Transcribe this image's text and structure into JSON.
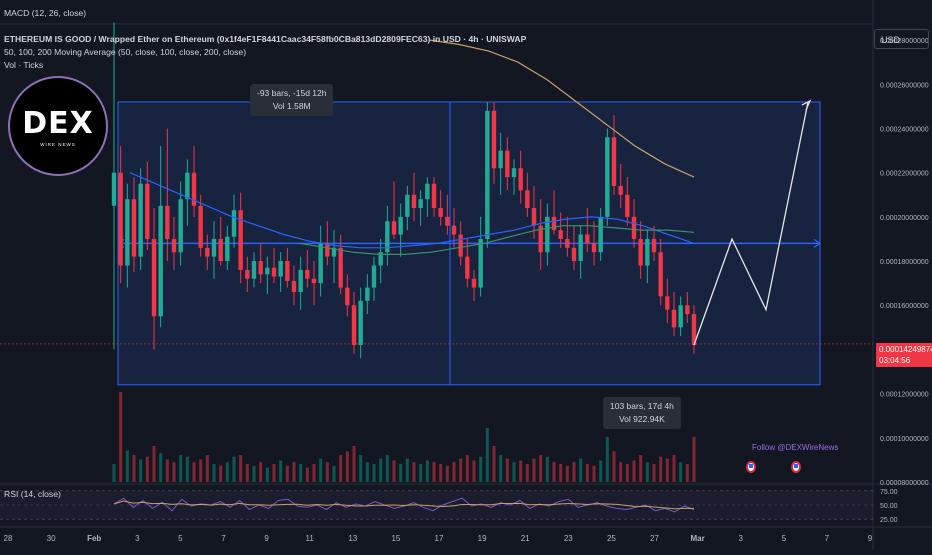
{
  "header": {
    "macd_label": "MACD (12, 26, close)",
    "title": "ETHEREUM IS GOOD / Wrapped Ether on Ethereum (0x1f4eF1F8441Caac34F58fb0CBa813dD2809FEC63) in USD · 4h · UNISWAP",
    "ma_label": "50, 100, 200 Moving Average (50, close, 100, close, 200, close)",
    "vol_label": "Vol · Ticks"
  },
  "currency": "USD",
  "logo": {
    "text": "DEX",
    "subtext": "WIRE NEWS"
  },
  "follow_text": "Follow @DEXWireNews",
  "tooltip_top": {
    "line1": "-93 bars, -15d 12h",
    "line2": "Vol 1.58M"
  },
  "tooltip_bottom": {
    "line1": "103 bars, 17d 4h",
    "line2": "Vol 922.94K"
  },
  "price_tag": {
    "price": "0.00014249874",
    "countdown": "03:04:56"
  },
  "rsi_label": "RSI (14, close)",
  "price_axis": [
    "0.00028000000",
    "0.00026000000",
    "0.00024000000",
    "0.00022000000",
    "0.00020000000",
    "0.00018000000",
    "0.00016000000",
    "0.00014000000",
    "0.00012000000",
    "0.00010000000",
    "0.00008000000"
  ],
  "rsi_axis": [
    "75.00",
    "50.00",
    "25.00"
  ],
  "time_axis": [
    "28",
    "30",
    "Feb",
    "3",
    "5",
    "7",
    "9",
    "11",
    "13",
    "15",
    "17",
    "19",
    "21",
    "23",
    "25",
    "27",
    "Mar",
    "3",
    "5",
    "7",
    "9"
  ],
  "colors": {
    "up": "#089981",
    "up_candle": "#22ab94",
    "down": "#f23645",
    "range_fill": "#1e2e5a",
    "range_line": "#2962ff",
    "ma50": "#2962ff",
    "ma100": "#3f8f6b",
    "ma200": "#c4a06a",
    "rsi": "#7e57c2",
    "rsi_ma": "#c4a06a"
  },
  "chart_data": {
    "type": "candlestick",
    "timeframe": "4h",
    "ylim": [
      8e-05,
      0.00029
    ],
    "price_range_box": {
      "high": 0.000252,
      "low": 0.000124,
      "mid": 0.000188
    },
    "last_price": 0.00014249874,
    "candles": [
      [
        0.000205,
        0.000288,
        0.00014,
        0.00022
      ],
      [
        0.00022,
        0.000232,
        0.00017,
        0.000178
      ],
      [
        0.000178,
        0.000215,
        0.000168,
        0.000208
      ],
      [
        0.000208,
        0.000218,
        0.000175,
        0.000182
      ],
      [
        0.000182,
        0.000222,
        0.000176,
        0.000215
      ],
      [
        0.000215,
        0.000225,
        0.000185,
        0.00019
      ],
      [
        0.00019,
        0.000204,
        0.00014,
        0.000155
      ],
      [
        0.000155,
        0.000232,
        0.00015,
        0.000205
      ],
      [
        0.000205,
        0.00024,
        0.00018,
        0.00019
      ],
      [
        0.00019,
        0.0002,
        0.000176,
        0.000184
      ],
      [
        0.000184,
        0.000216,
        0.000178,
        0.000208
      ],
      [
        0.000208,
        0.000226,
        0.000196,
        0.00022
      ],
      [
        0.00022,
        0.000232,
        0.0002,
        0.000205
      ],
      [
        0.000205,
        0.00021,
        0.000182,
        0.000186
      ],
      [
        0.000186,
        0.000192,
        0.000176,
        0.000182
      ],
      [
        0.000182,
        0.000198,
        0.000172,
        0.00019
      ],
      [
        0.00019,
        0.0002,
        0.000178,
        0.00018
      ],
      [
        0.00018,
        0.000196,
        0.000176,
        0.000191
      ],
      [
        0.000191,
        0.00021,
        0.000186,
        0.000203
      ],
      [
        0.000203,
        0.000211,
        0.00017,
        0.000176
      ],
      [
        0.000176,
        0.000182,
        0.000166,
        0.000172
      ],
      [
        0.000172,
        0.000184,
        0.000168,
        0.00018
      ],
      [
        0.00018,
        0.000188,
        0.00017,
        0.000174
      ],
      [
        0.000174,
        0.000182,
        0.000165,
        0.000177
      ],
      [
        0.000177,
        0.000186,
        0.00017,
        0.000173
      ],
      [
        0.000173,
        0.000184,
        0.000166,
        0.00018
      ],
      [
        0.00018,
        0.000186,
        0.000168,
        0.000171
      ],
      [
        0.000171,
        0.000178,
        0.00016,
        0.000166
      ],
      [
        0.000166,
        0.000182,
        0.000158,
        0.000176
      ],
      [
        0.000176,
        0.000185,
        0.000168,
        0.000172
      ],
      [
        0.000172,
        0.00018,
        0.00016,
        0.00017
      ],
      [
        0.00017,
        0.000196,
        0.000164,
        0.000188
      ],
      [
        0.000188,
        0.000198,
        0.000178,
        0.000182
      ],
      [
        0.000182,
        0.000194,
        0.00017,
        0.000186
      ],
      [
        0.000186,
        0.000192,
        0.000165,
        0.000168
      ],
      [
        0.000168,
        0.000174,
        0.000155,
        0.00016
      ],
      [
        0.00016,
        0.000166,
        0.000138,
        0.000142
      ],
      [
        0.000142,
        0.000168,
        0.000136,
        0.000162
      ],
      [
        0.000162,
        0.000174,
        0.000156,
        0.000168
      ],
      [
        0.000168,
        0.000182,
        0.000162,
        0.000178
      ],
      [
        0.000178,
        0.00019,
        0.00017,
        0.000184
      ],
      [
        0.000184,
        0.000205,
        0.000178,
        0.000198
      ],
      [
        0.000198,
        0.000216,
        0.00019,
        0.000192
      ],
      [
        0.000192,
        0.000206,
        0.000182,
        0.0002
      ],
      [
        0.0002,
        0.000214,
        0.000194,
        0.00021
      ],
      [
        0.00021,
        0.00022,
        0.000198,
        0.000204
      ],
      [
        0.000204,
        0.000212,
        0.000196,
        0.000208
      ],
      [
        0.000208,
        0.000218,
        0.0002,
        0.000215
      ],
      [
        0.000215,
        0.000218,
        0.0002,
        0.000204
      ],
      [
        0.000204,
        0.000212,
        0.000196,
        0.0002
      ],
      [
        0.0002,
        0.00021,
        0.000192,
        0.000196
      ],
      [
        0.000196,
        0.000204,
        0.000186,
        0.000192
      ],
      [
        0.000192,
        0.000198,
        0.000178,
        0.000182
      ],
      [
        0.000182,
        0.00019,
        0.000168,
        0.000172
      ],
      [
        0.000172,
        0.000176,
        0.000162,
        0.000168
      ],
      [
        0.000168,
        0.0002,
        0.000164,
        0.00019
      ],
      [
        0.00019,
        0.000252,
        0.000186,
        0.000248
      ],
      [
        0.000248,
        0.000252,
        0.000215,
        0.000222
      ],
      [
        0.000222,
        0.000238,
        0.00021,
        0.00023
      ],
      [
        0.00023,
        0.000236,
        0.000212,
        0.000218
      ],
      [
        0.000218,
        0.000226,
        0.00021,
        0.000222
      ],
      [
        0.000222,
        0.00023,
        0.000206,
        0.000212
      ],
      [
        0.000212,
        0.00022,
        0.0002,
        0.000204
      ],
      [
        0.000204,
        0.000214,
        0.00019,
        0.000196
      ],
      [
        0.000196,
        0.000208,
        0.000176,
        0.000184
      ],
      [
        0.000184,
        0.000206,
        0.000178,
        0.0002
      ],
      [
        0.0002,
        0.000212,
        0.000192,
        0.000194
      ],
      [
        0.000194,
        0.000202,
        0.000186,
        0.00019
      ],
      [
        0.00019,
        0.0002,
        0.000182,
        0.000186
      ],
      [
        0.000186,
        0.000196,
        0.000176,
        0.00018
      ],
      [
        0.00018,
        0.000196,
        0.000172,
        0.000192
      ],
      [
        0.000192,
        0.000204,
        0.000184,
        0.000188
      ],
      [
        0.000188,
        0.000198,
        0.000178,
        0.000184
      ],
      [
        0.000184,
        0.000204,
        0.00018,
        0.0002
      ],
      [
        0.0002,
        0.00024,
        0.000196,
        0.000236
      ],
      [
        0.000236,
        0.000246,
        0.00021,
        0.000214
      ],
      [
        0.000214,
        0.000224,
        0.000204,
        0.00021
      ],
      [
        0.00021,
        0.000218,
        0.000196,
        0.0002
      ],
      [
        0.0002,
        0.000208,
        0.000186,
        0.00019
      ],
      [
        0.00019,
        0.000198,
        0.000172,
        0.000178
      ],
      [
        0.000178,
        0.000194,
        0.00017,
        0.00019
      ],
      [
        0.00019,
        0.000196,
        0.00018,
        0.000184
      ],
      [
        0.000184,
        0.00019,
        0.00016,
        0.000164
      ],
      [
        0.000164,
        0.000172,
        0.000152,
        0.000158
      ],
      [
        0.000158,
        0.000166,
        0.000146,
        0.00015
      ],
      [
        0.00015,
        0.000164,
        0.000146,
        0.00016
      ],
      [
        0.00016,
        0.000166,
        0.000152,
        0.000156
      ],
      [
        0.000156,
        0.00016,
        0.000138,
        0.000142
      ]
    ],
    "volumes": [
      0.2,
      1.0,
      0.35,
      0.3,
      0.25,
      0.28,
      0.4,
      0.32,
      0.25,
      0.22,
      0.3,
      0.28,
      0.22,
      0.25,
      0.3,
      0.2,
      0.18,
      0.22,
      0.28,
      0.3,
      0.2,
      0.18,
      0.22,
      0.16,
      0.2,
      0.24,
      0.18,
      0.22,
      0.2,
      0.16,
      0.2,
      0.26,
      0.22,
      0.18,
      0.3,
      0.34,
      0.4,
      0.3,
      0.22,
      0.2,
      0.26,
      0.3,
      0.24,
      0.2,
      0.26,
      0.22,
      0.2,
      0.24,
      0.22,
      0.2,
      0.18,
      0.22,
      0.26,
      0.3,
      0.24,
      0.28,
      0.6,
      0.4,
      0.3,
      0.26,
      0.22,
      0.24,
      0.2,
      0.26,
      0.3,
      0.28,
      0.22,
      0.2,
      0.18,
      0.22,
      0.26,
      0.2,
      0.18,
      0.24,
      0.5,
      0.34,
      0.22,
      0.2,
      0.24,
      0.3,
      0.22,
      0.2,
      0.28,
      0.26,
      0.3,
      0.22,
      0.2,
      0.5
    ],
    "ma50": [
      0.00022,
      0.000215,
      0.00021,
      0.000205,
      0.0002,
      0.000196,
      0.000192,
      0.000189,
      0.000187,
      0.000186,
      0.000186,
      0.000187,
      0.000188,
      0.00019,
      0.000192,
      0.000194,
      0.000197,
      0.000199,
      0.0002,
      0.000199,
      0.000196,
      0.000192,
      0.000188
    ],
    "ma100": [
      0.000188,
      0.000186,
      0.000184,
      0.000183,
      0.000183,
      0.000184,
      0.000186,
      0.000188,
      0.000191,
      0.000194,
      0.000196,
      0.000196,
      0.000195,
      0.000194,
      0.000194,
      0.000193
    ],
    "ma200": [
      0.00028,
      0.000278,
      0.000275,
      0.00027,
      0.000262,
      0.000252,
      0.000242,
      0.000232,
      0.000224,
      0.000218
    ],
    "projection": [
      0.000142,
      0.00019,
      0.000158,
      0.000252
    ],
    "rsi": [
      52,
      62,
      46,
      58,
      44,
      55,
      40,
      60,
      48,
      52,
      50,
      56,
      46,
      58,
      42,
      50,
      44,
      58,
      60,
      48,
      46,
      50,
      42,
      54,
      46,
      52,
      48,
      56,
      50,
      44,
      48,
      54,
      46,
      40,
      50,
      56,
      62,
      48,
      52,
      46,
      54,
      50,
      58,
      44,
      52,
      48,
      56,
      60,
      46,
      50,
      54,
      48,
      44,
      42,
      46,
      50,
      40,
      44,
      38,
      48,
      42
    ]
  }
}
